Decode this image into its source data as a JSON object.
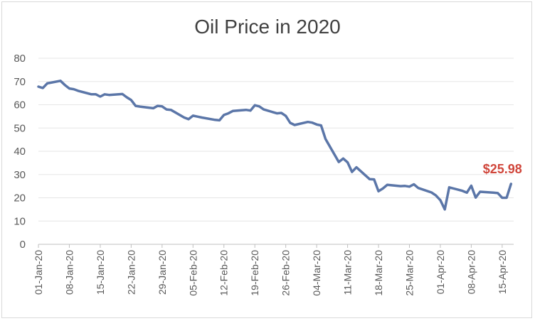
{
  "chart_data": {
    "type": "line",
    "title": "Oil Price in 2020",
    "xlabel": "",
    "ylabel": "",
    "ylim": [
      0,
      80
    ],
    "y_ticks": [
      "0",
      "10",
      "20",
      "30",
      "40",
      "50",
      "60",
      "70",
      "80"
    ],
    "x_ticks": [
      "01-Jan-20",
      "08-Jan-20",
      "15-Jan-20",
      "22-Jan-20",
      "29-Jan-20",
      "05-Feb-20",
      "12-Feb-20",
      "19-Feb-20",
      "26-Feb-20",
      "04-Mar-20",
      "11-Mar-20",
      "18-Mar-20",
      "25-Mar-20",
      "01-Apr-20",
      "08-Apr-20",
      "15-Apr-20"
    ],
    "grid": true,
    "legend": "none",
    "series_color": "#5b76a8",
    "label_color": "#d0463b",
    "data_label": "$25.98",
    "x": [
      "2020-01-01",
      "2020-01-02",
      "2020-01-03",
      "2020-01-06",
      "2020-01-07",
      "2020-01-08",
      "2020-01-09",
      "2020-01-10",
      "2020-01-13",
      "2020-01-14",
      "2020-01-15",
      "2020-01-16",
      "2020-01-17",
      "2020-01-20",
      "2020-01-21",
      "2020-01-22",
      "2020-01-23",
      "2020-01-24",
      "2020-01-27",
      "2020-01-28",
      "2020-01-29",
      "2020-01-30",
      "2020-01-31",
      "2020-02-03",
      "2020-02-04",
      "2020-02-05",
      "2020-02-06",
      "2020-02-07",
      "2020-02-10",
      "2020-02-11",
      "2020-02-12",
      "2020-02-13",
      "2020-02-14",
      "2020-02-17",
      "2020-02-18",
      "2020-02-19",
      "2020-02-20",
      "2020-02-21",
      "2020-02-24",
      "2020-02-25",
      "2020-02-26",
      "2020-02-27",
      "2020-02-28",
      "2020-03-02",
      "2020-03-03",
      "2020-03-04",
      "2020-03-05",
      "2020-03-06",
      "2020-03-09",
      "2020-03-10",
      "2020-03-11",
      "2020-03-12",
      "2020-03-13",
      "2020-03-16",
      "2020-03-17",
      "2020-03-18",
      "2020-03-19",
      "2020-03-20",
      "2020-03-23",
      "2020-03-24",
      "2020-03-25",
      "2020-03-26",
      "2020-03-27",
      "2020-03-30",
      "2020-03-31",
      "2020-04-01",
      "2020-04-02",
      "2020-04-03",
      "2020-04-06",
      "2020-04-07",
      "2020-04-08",
      "2020-04-09",
      "2020-04-10",
      "2020-04-13",
      "2020-04-14",
      "2020-04-15",
      "2020-04-16",
      "2020-04-17"
    ],
    "values": [
      67.8,
      67.2,
      69.2,
      70.3,
      68.5,
      67.0,
      66.7,
      66.0,
      64.5,
      64.5,
      63.5,
      64.5,
      64.2,
      64.6,
      63.2,
      62.0,
      59.5,
      59.2,
      58.5,
      59.5,
      59.3,
      58.0,
      57.8,
      54.5,
      53.8,
      55.3,
      54.9,
      54.5,
      53.5,
      53.3,
      55.6,
      56.3,
      57.3,
      57.8,
      57.5,
      59.8,
      59.3,
      58.0,
      56.3,
      56.5,
      55.2,
      52.2,
      51.3,
      52.6,
      52.3,
      51.5,
      51.1,
      45.3,
      35.4,
      36.9,
      35.2,
      31.1,
      33.1,
      28.0,
      27.9,
      22.8,
      24.0,
      25.6,
      25.0,
      25.1,
      24.8,
      25.8,
      24.2,
      22.3,
      21.0,
      19.0,
      15.0,
      24.5,
      23.0,
      22.2,
      25.2,
      20.1,
      22.6,
      22.2,
      22.0,
      20.0,
      20.0,
      25.98
    ]
  }
}
